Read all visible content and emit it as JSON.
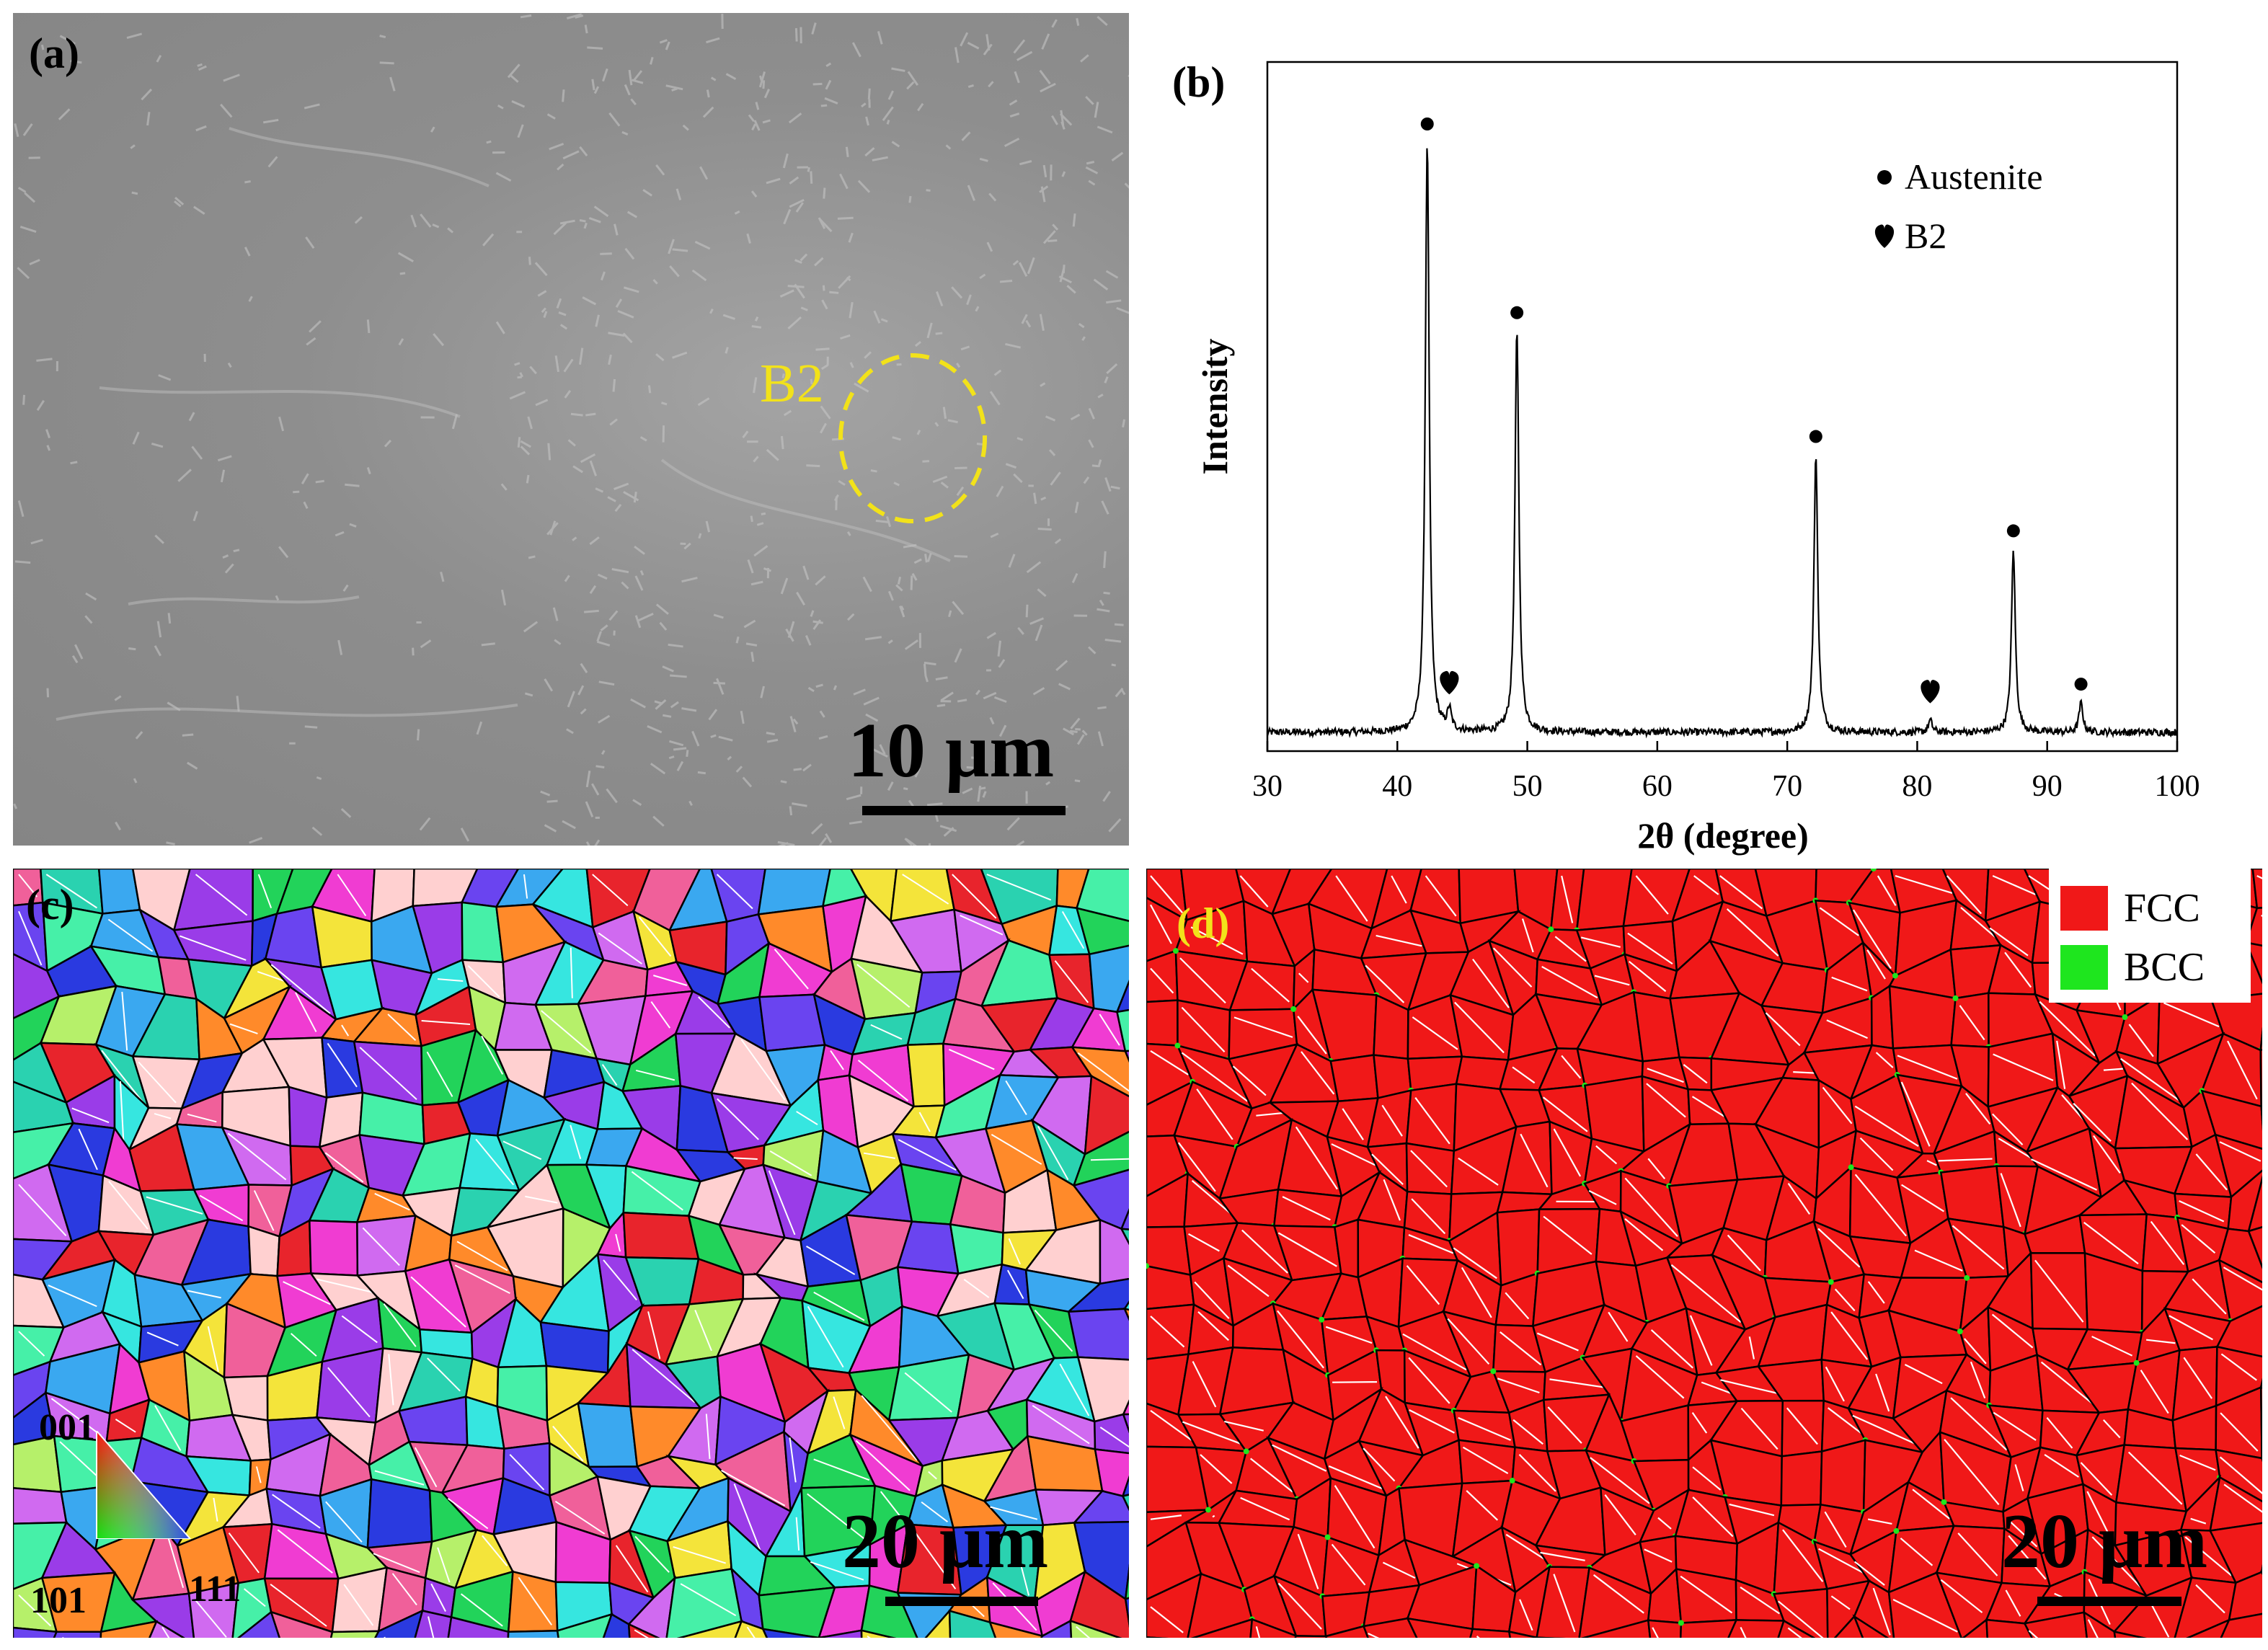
{
  "panel_a": {
    "letter": "(a)",
    "annotation": "B2",
    "annotation_color": "#f2e21a",
    "scale_bar": "10 μm"
  },
  "panel_b": {
    "letter": "(b)",
    "ylabel": "Intensity",
    "xlabel": "2θ (degree)",
    "legend": [
      {
        "marker": "circle",
        "label": "Austenite"
      },
      {
        "marker": "heart",
        "label": "B2"
      }
    ]
  },
  "panel_c": {
    "letter": "(c)",
    "scale_bar": "20 μm",
    "ipf_labels": [
      "001",
      "101",
      "111"
    ]
  },
  "panel_d": {
    "letter": "(d)",
    "letter_color": "#f2e21a",
    "scale_bar": "20 μm",
    "legend": [
      {
        "label": "FCC",
        "color": "#f01818"
      },
      {
        "label": "BCC",
        "color": "#1ee61e"
      }
    ]
  },
  "chart_data": {
    "type": "line",
    "xlabel": "2θ (degree)",
    "ylabel": "Intensity",
    "xlim": [
      30,
      100
    ],
    "xticks": [
      30,
      40,
      50,
      60,
      70,
      80,
      90,
      100
    ],
    "peaks": [
      {
        "x": 42.3,
        "y": 1.0,
        "phase": "Austenite"
      },
      {
        "x": 44.0,
        "y": 0.035,
        "phase": "B2"
      },
      {
        "x": 49.2,
        "y": 0.68,
        "phase": "Austenite"
      },
      {
        "x": 72.2,
        "y": 0.47,
        "phase": "Austenite"
      },
      {
        "x": 81.0,
        "y": 0.02,
        "phase": "B2"
      },
      {
        "x": 87.4,
        "y": 0.31,
        "phase": "Austenite"
      },
      {
        "x": 92.6,
        "y": 0.05,
        "phase": "Austenite"
      }
    ],
    "legend_placement": "top-right"
  }
}
